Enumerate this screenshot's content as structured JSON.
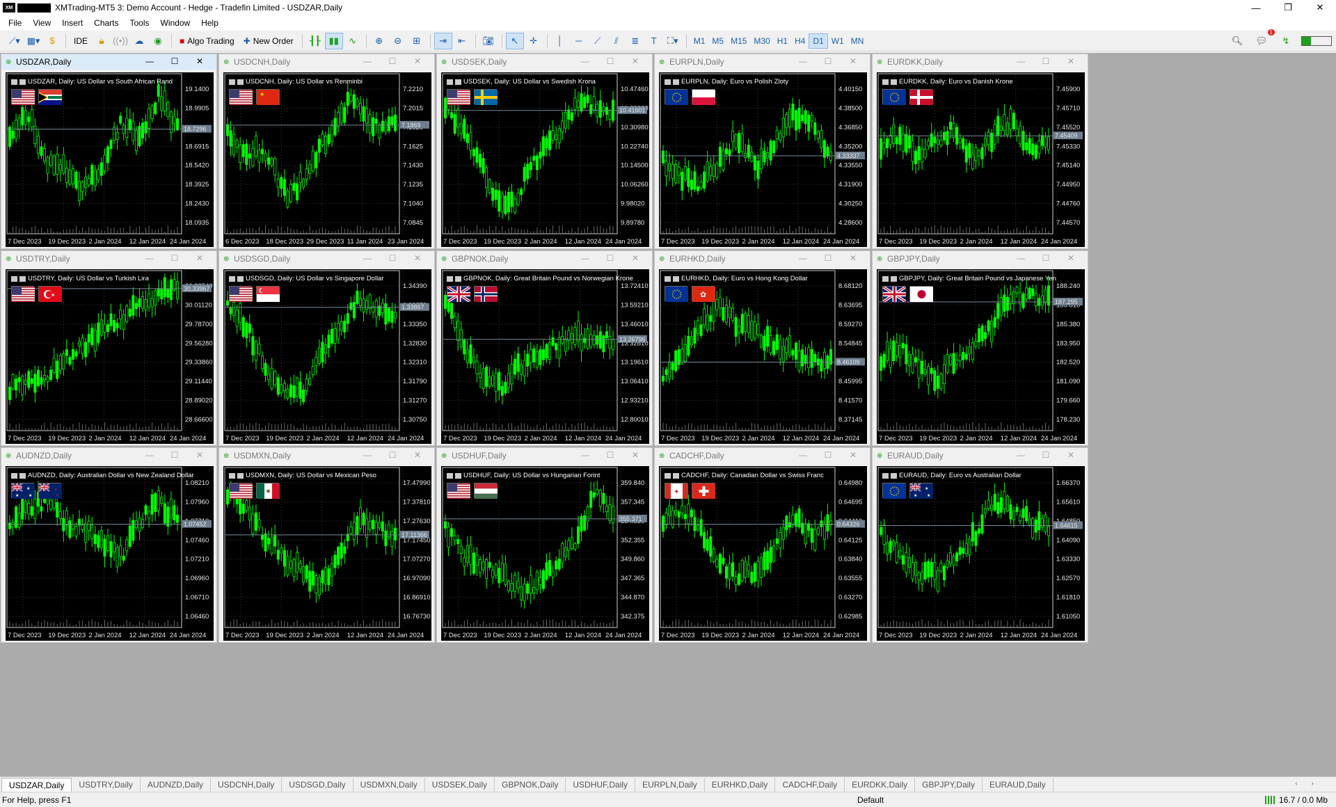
{
  "window": {
    "title": "XMTrading-MT5 3: Demo Account - Hedge - Tradefin Limited - USDZAR,Daily",
    "icon": "mt5-app-icon",
    "app_icon_text": "XM",
    "controls": [
      "minimize",
      "restore",
      "close"
    ],
    "control_glyphs": [
      "—",
      "❐",
      "✕"
    ]
  },
  "menu": [
    "File",
    "View",
    "Insert",
    "Charts",
    "Tools",
    "Window",
    "Help"
  ],
  "toolbar": {
    "algo_trading": "Algo Trading",
    "new_order": "New Order",
    "ide": "IDE",
    "timeframes": [
      "M1",
      "M5",
      "M15",
      "M30",
      "H1",
      "H4",
      "D1",
      "W1",
      "MN"
    ],
    "active_timeframe": "D1",
    "notification_count": "1"
  },
  "charts": [
    {
      "symbol": "USDZAR",
      "title": "USDZAR,Daily",
      "description": "USDZAR, Daily:  US Dollar vs South African Rand",
      "flags": [
        "us",
        "za"
      ],
      "active": true,
      "ticks": [
        "19.1400",
        "18.9905",
        "18.8410",
        "18.6915",
        "18.5420",
        "18.3925",
        "18.2430",
        "18.0935"
      ],
      "price_tag": "18.7296",
      "price_level": 0.3,
      "dates": [
        "7 Dec 2023",
        "19 Dec 2023",
        "2 Jan 2024",
        "12 Jan 2024",
        "24 Jan 2024"
      ],
      "trend": [
        0.35,
        0.2,
        0.55,
        0.6,
        0.75,
        0.55,
        0.25,
        0.4,
        0.05,
        0.3
      ]
    },
    {
      "symbol": "USDCNH",
      "title": "USDCNH,Daily",
      "description": "USDCNH, Daily:  US Dollar vs Renminbi",
      "flags": [
        "us",
        "cn"
      ],
      "active": false,
      "ticks": [
        "7.2210",
        "7.2015",
        "7.1820",
        "7.1625",
        "7.1430",
        "7.1235",
        "7.1040",
        "7.0845"
      ],
      "price_tag": "7.1869",
      "price_level": 0.27,
      "dates": [
        "6 Dec 2023",
        "18 Dec 2023",
        "29 Dec 2023",
        "11 Jan 2024",
        "23 Jan 2024"
      ],
      "trend": [
        0.35,
        0.5,
        0.45,
        0.6,
        0.8,
        0.65,
        0.45,
        0.3,
        0.1,
        0.2,
        0.3,
        0.28
      ]
    },
    {
      "symbol": "USDSEK",
      "title": "USDSEK,Daily",
      "description": "USDSEK, Daily:  US Dollar vs Swedish Krona",
      "flags": [
        "us",
        "se"
      ],
      "active": false,
      "ticks": [
        "10.47460",
        "10.39220",
        "10.30980",
        "10.22740",
        "10.14500",
        "10.06260",
        "9.98020",
        "9.89780"
      ],
      "price_tag": "10.41601",
      "price_level": 0.16,
      "dates": [
        "7 Dec 2023",
        "19 Dec 2023",
        "2 Jan 2024",
        "12 Jan 2024",
        "24 Jan 2024"
      ],
      "trend": [
        0.15,
        0.3,
        0.55,
        0.8,
        0.85,
        0.6,
        0.45,
        0.3,
        0.1,
        0.15,
        0.18
      ]
    },
    {
      "symbol": "EURPLN",
      "title": "EURPLN,Daily",
      "description": "EURPLN, Daily:  Euro vs Polish Zloty",
      "flags": [
        "eu",
        "pl"
      ],
      "active": false,
      "ticks": [
        "4.40150",
        "4.38500",
        "4.36850",
        "4.35200",
        "4.33550",
        "4.31900",
        "4.30250",
        "4.28600"
      ],
      "price_tag": "4.33337",
      "price_level": 0.5,
      "dates": [
        "7 Dec 2023",
        "19 Dec 2023",
        "2 Jan 2024",
        "12 Jan 2024",
        "24 Jan 2024"
      ],
      "trend": [
        0.55,
        0.65,
        0.7,
        0.55,
        0.35,
        0.6,
        0.4,
        0.2,
        0.25,
        0.5
      ]
    },
    {
      "symbol": "EURDKK",
      "title": "EURDKK,Daily",
      "description": "EURDKK, Daily:  Euro vs Danish Krone",
      "flags": [
        "eu",
        "dk"
      ],
      "active": false,
      "ticks": [
        "7.45900",
        "7.45710",
        "7.45520",
        "7.45330",
        "7.45140",
        "7.44950",
        "7.44760",
        "7.44570"
      ],
      "price_tag": "7.45409",
      "price_level": 0.35,
      "dates": [
        "7 Dec 2023",
        "19 Dec 2023",
        "2 Jan 2024",
        "12 Jan 2024",
        "24 Jan 2024"
      ],
      "trend": [
        0.45,
        0.35,
        0.5,
        0.4,
        0.3,
        0.55,
        0.35,
        0.25,
        0.45,
        0.4
      ]
    },
    {
      "symbol": "USDTRY",
      "title": "USDTRY,Daily",
      "description": "USDTRY, Daily:  US Dollar vs Turkish Lira",
      "flags": [
        "us",
        "tr"
      ],
      "active": false,
      "ticks": [
        "30.23540",
        "30.01120",
        "29.78700",
        "29.56280",
        "29.33860",
        "29.11440",
        "28.89020",
        "28.66600"
      ],
      "price_tag": "30.33967",
      "price_level": 0.02,
      "dates": [
        "7 Dec 2023",
        "19 Dec 2023",
        "2 Jan 2024",
        "12 Jan 2024",
        "24 Jan 2024"
      ],
      "trend": [
        0.75,
        0.72,
        0.65,
        0.55,
        0.45,
        0.35,
        0.25,
        0.15,
        0.08,
        0.03
      ]
    },
    {
      "symbol": "USDSGD",
      "title": "USDSGD,Daily",
      "description": "USDSGD, Daily:  US Dollar vs Singapore Dollar",
      "flags": [
        "us",
        "sg"
      ],
      "active": false,
      "ticks": [
        "1.34390",
        "1.33870",
        "1.33350",
        "1.32830",
        "1.32310",
        "1.31790",
        "1.31270",
        "1.30750"
      ],
      "price_tag": "1.33867",
      "price_level": 0.16,
      "dates": [
        "7 Dec 2023",
        "19 Dec 2023",
        "2 Jan 2024",
        "12 Jan 2024",
        "24 Jan 2024"
      ],
      "trend": [
        0.15,
        0.3,
        0.6,
        0.75,
        0.8,
        0.5,
        0.35,
        0.1,
        0.2,
        0.2
      ]
    },
    {
      "symbol": "GBPNOK",
      "title": "GBPNOK,Daily",
      "description": "GBPNOK, Daily:  Great Britain Pound vs Norwegian Krone",
      "flags": [
        "gb",
        "no"
      ],
      "active": false,
      "ticks": [
        "13.72410",
        "13.59210",
        "13.46010",
        "13.32810",
        "13.19610",
        "13.06410",
        "12.93210",
        "12.80010"
      ],
      "price_tag": "13.26796",
      "price_level": 0.4,
      "dates": [
        "7 Dec 2023",
        "19 Dec 2023",
        "2 Jan 2024",
        "12 Jan 2024",
        "24 Jan 2024"
      ],
      "trend": [
        0.1,
        0.45,
        0.7,
        0.75,
        0.6,
        0.5,
        0.45,
        0.38,
        0.42,
        0.4
      ]
    },
    {
      "symbol": "EURHKD",
      "title": "EURHKD,Daily",
      "description": "EURHKD, Daily:  Euro vs Hong Kong Dollar",
      "flags": [
        "eu",
        "hk"
      ],
      "active": false,
      "ticks": [
        "8.68120",
        "8.63695",
        "8.59270",
        "8.54845",
        "8.50420",
        "8.45995",
        "8.41570",
        "8.37145"
      ],
      "price_tag": "8.46109",
      "price_level": 0.57,
      "dates": [
        "7 Dec 2023",
        "19 Dec 2023",
        "2 Jan 2024",
        "12 Jan 2024",
        "24 Jan 2024"
      ],
      "trend": [
        0.7,
        0.55,
        0.3,
        0.15,
        0.3,
        0.35,
        0.45,
        0.5,
        0.55,
        0.57
      ]
    },
    {
      "symbol": "GBPJPY",
      "title": "GBPJPY,Daily",
      "description": "GBPJPY, Daily:  Great Britain Pound vs Japanese Yen",
      "flags": [
        "gb",
        "jp"
      ],
      "active": false,
      "ticks": [
        "188.240",
        "186.810",
        "185.380",
        "183.950",
        "182.520",
        "181.090",
        "179.660",
        "178.230"
      ],
      "price_tag": "187.295",
      "price_level": 0.12,
      "dates": [
        "7 Dec 2023",
        "19 Dec 2023",
        "2 Jan 2024",
        "12 Jan 2024",
        "24 Jan 2024"
      ],
      "trend": [
        0.55,
        0.45,
        0.6,
        0.7,
        0.55,
        0.45,
        0.3,
        0.1,
        0.08,
        0.12
      ]
    },
    {
      "symbol": "AUDNZD",
      "title": "AUDNZD,Daily",
      "description": "AUDNZD, Daily:  Australian Dollar vs New Zealand Dollar",
      "flags": [
        "au",
        "nz"
      ],
      "active": false,
      "ticks": [
        "1.08210",
        "1.07960",
        "1.07710",
        "1.07460",
        "1.07210",
        "1.06960",
        "1.06710",
        "1.06460"
      ],
      "price_tag": "1.07452",
      "price_level": 0.31,
      "dates": [
        "7 Dec 2023",
        "19 Dec 2023",
        "2 Jan 2024",
        "12 Jan 2024",
        "24 Jan 2024"
      ],
      "trend": [
        0.35,
        0.2,
        0.15,
        0.3,
        0.35,
        0.45,
        0.55,
        0.3,
        0.15,
        0.3
      ]
    },
    {
      "symbol": "USDMXN",
      "title": "USDMXN,Daily",
      "description": "USDMXN, Daily:  US Dollar vs Mexican Peso",
      "flags": [
        "us",
        "mx"
      ],
      "active": false,
      "ticks": [
        "17.47990",
        "17.37810",
        "17.27630",
        "17.17450",
        "17.07270",
        "16.97090",
        "16.86910",
        "16.76730"
      ],
      "price_tag": "17.11366",
      "price_level": 0.39,
      "dates": [
        "7 Dec 2023",
        "19 Dec 2023",
        "2 Jan 2024",
        "12 Jan 2024",
        "24 Jan 2024"
      ],
      "trend": [
        0.1,
        0.2,
        0.4,
        0.55,
        0.65,
        0.75,
        0.55,
        0.3,
        0.35,
        0.4
      ]
    },
    {
      "symbol": "USDHUF",
      "title": "USDHUF,Daily",
      "description": "USDHUF, Daily:  US Dollar vs Hungarian Forint",
      "flags": [
        "us",
        "hu"
      ],
      "active": false,
      "ticks": [
        "359.840",
        "357.345",
        "354.850",
        "352.355",
        "349.860",
        "347.365",
        "344.870",
        "342.375"
      ],
      "price_tag": "355.371",
      "price_level": 0.27,
      "dates": [
        "7 Dec 2023",
        "19 Dec 2023",
        "2 Jan 2024",
        "12 Jan 2024",
        "24 Jan 2024"
      ],
      "trend": [
        0.35,
        0.55,
        0.6,
        0.7,
        0.8,
        0.75,
        0.6,
        0.45,
        0.1,
        0.25
      ]
    },
    {
      "symbol": "CADCHF",
      "title": "CADCHF,Daily",
      "description": "CADCHF, Daily:  Canadian Dollar vs Swiss Franc",
      "flags": [
        "ca",
        "ch"
      ],
      "active": false,
      "ticks": [
        "0.64980",
        "0.64695",
        "0.64410",
        "0.64125",
        "0.63840",
        "0.63555",
        "0.63270",
        "0.62985"
      ],
      "price_tag": "0.64326",
      "price_level": 0.31,
      "dates": [
        "7 Dec 2023",
        "19 Dec 2023",
        "2 Jan 2024",
        "12 Jan 2024",
        "24 Jan 2024"
      ],
      "trend": [
        0.3,
        0.2,
        0.35,
        0.6,
        0.7,
        0.65,
        0.5,
        0.25,
        0.4,
        0.3
      ]
    },
    {
      "symbol": "EURAUD",
      "title": "EURAUD,Daily",
      "description": "EURAUD, Daily:  Euro vs Australian Dollar",
      "flags": [
        "eu",
        "au"
      ],
      "active": false,
      "ticks": [
        "1.66370",
        "1.65610",
        "1.64850",
        "1.64090",
        "1.63330",
        "1.62570",
        "1.61810",
        "1.61050"
      ],
      "price_tag": "1.64615",
      "price_level": 0.32,
      "dates": [
        "7 Dec 2023",
        "19 Dec 2023",
        "2 Jan 2024",
        "12 Jan 2024",
        "24 Jan 2024"
      ],
      "trend": [
        0.4,
        0.55,
        0.65,
        0.7,
        0.55,
        0.4,
        0.15,
        0.2,
        0.3,
        0.35
      ]
    }
  ],
  "tabs": [
    "USDZAR,Daily",
    "USDTRY,Daily",
    "AUDNZD,Daily",
    "USDCNH,Daily",
    "USDSGD,Daily",
    "USDMXN,Daily",
    "USDSEK,Daily",
    "GBPNOK,Daily",
    "USDHUF,Daily",
    "EURPLN,Daily",
    "EURHKD,Daily",
    "CADCHF,Daily",
    "EURDKK,Daily",
    "GBPJPY,Daily",
    "EURAUD,Daily"
  ],
  "active_tab": "USDZAR,Daily",
  "status": {
    "help": "For Help, press F1",
    "profile": "Default",
    "traffic": "16.7 / 0.0 Mb"
  },
  "colors": {
    "candle": "#00ff00",
    "chart_bg": "#000000",
    "grid": "#3a3a3a",
    "price_line": "#7a8a99",
    "accent": "#1b5fb0"
  }
}
